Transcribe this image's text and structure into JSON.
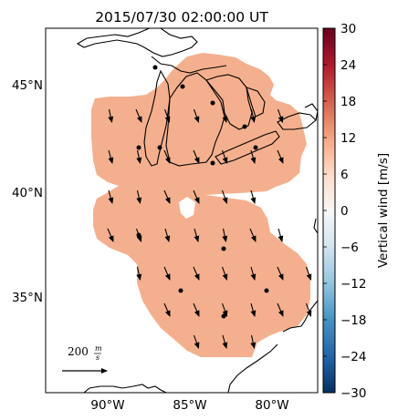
{
  "title": "2015/07/30 02:00:00 UT",
  "map": {
    "lat_ticks": [
      "45°N",
      "40°N",
      "35°N"
    ],
    "lon_ticks": [
      "90°W",
      "85°W",
      "80°W"
    ],
    "coverage_color": "#f4b08e",
    "coast_color": "#000000",
    "vectors": {
      "direction": "south-southeast",
      "reference_value": "200",
      "reference_unit_num": "m",
      "reference_unit_den": "s"
    },
    "stations_count": 13
  },
  "colorbar": {
    "label": "Vertical wind [m/s]",
    "ticks": [
      "30",
      "24",
      "18",
      "12",
      "6",
      "0",
      "−6",
      "−12",
      "−18",
      "−24",
      "−30"
    ],
    "colors": [
      "#67001f",
      "#b2182b",
      "#d6604d",
      "#f4a582",
      "#fddbc7",
      "#f7f7f7",
      "#d1e5f0",
      "#92c5de",
      "#4393c3",
      "#2166ac",
      "#053061"
    ]
  }
}
